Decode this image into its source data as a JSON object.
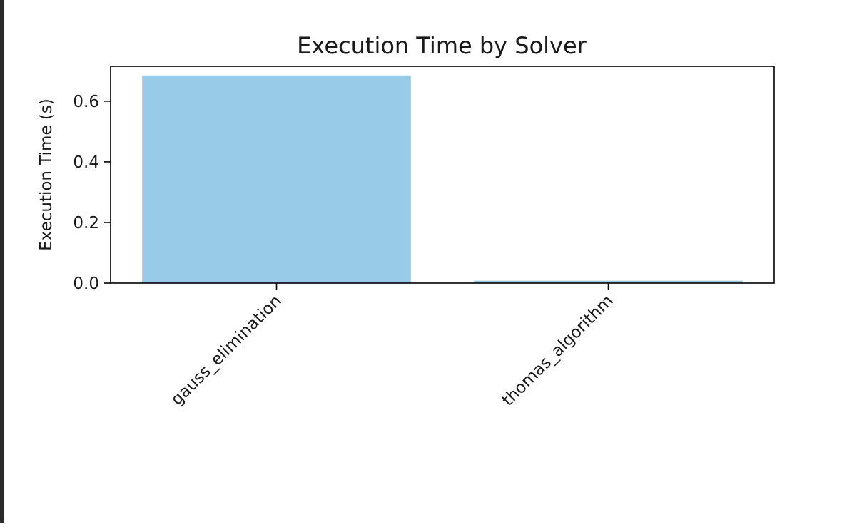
{
  "colors": {
    "bar": "#97cbe7",
    "axis": "#000000",
    "text": "#1a1a1a",
    "border": "#2b2b2b"
  },
  "chart_data": {
    "type": "bar",
    "title": "Execution Time by Solver",
    "xlabel": "",
    "ylabel": "Execution Time (s)",
    "categories": [
      "gauss_elimination",
      "thomas_algorithm"
    ],
    "values": [
      0.685,
      0.008
    ],
    "ylim": [
      0,
      0.715
    ],
    "yticks": [
      0.0,
      0.2,
      0.4,
      0.6
    ],
    "ytick_labels": [
      "0.0",
      "0.2",
      "0.4",
      "0.6"
    ],
    "grid": false,
    "legend": "none"
  }
}
